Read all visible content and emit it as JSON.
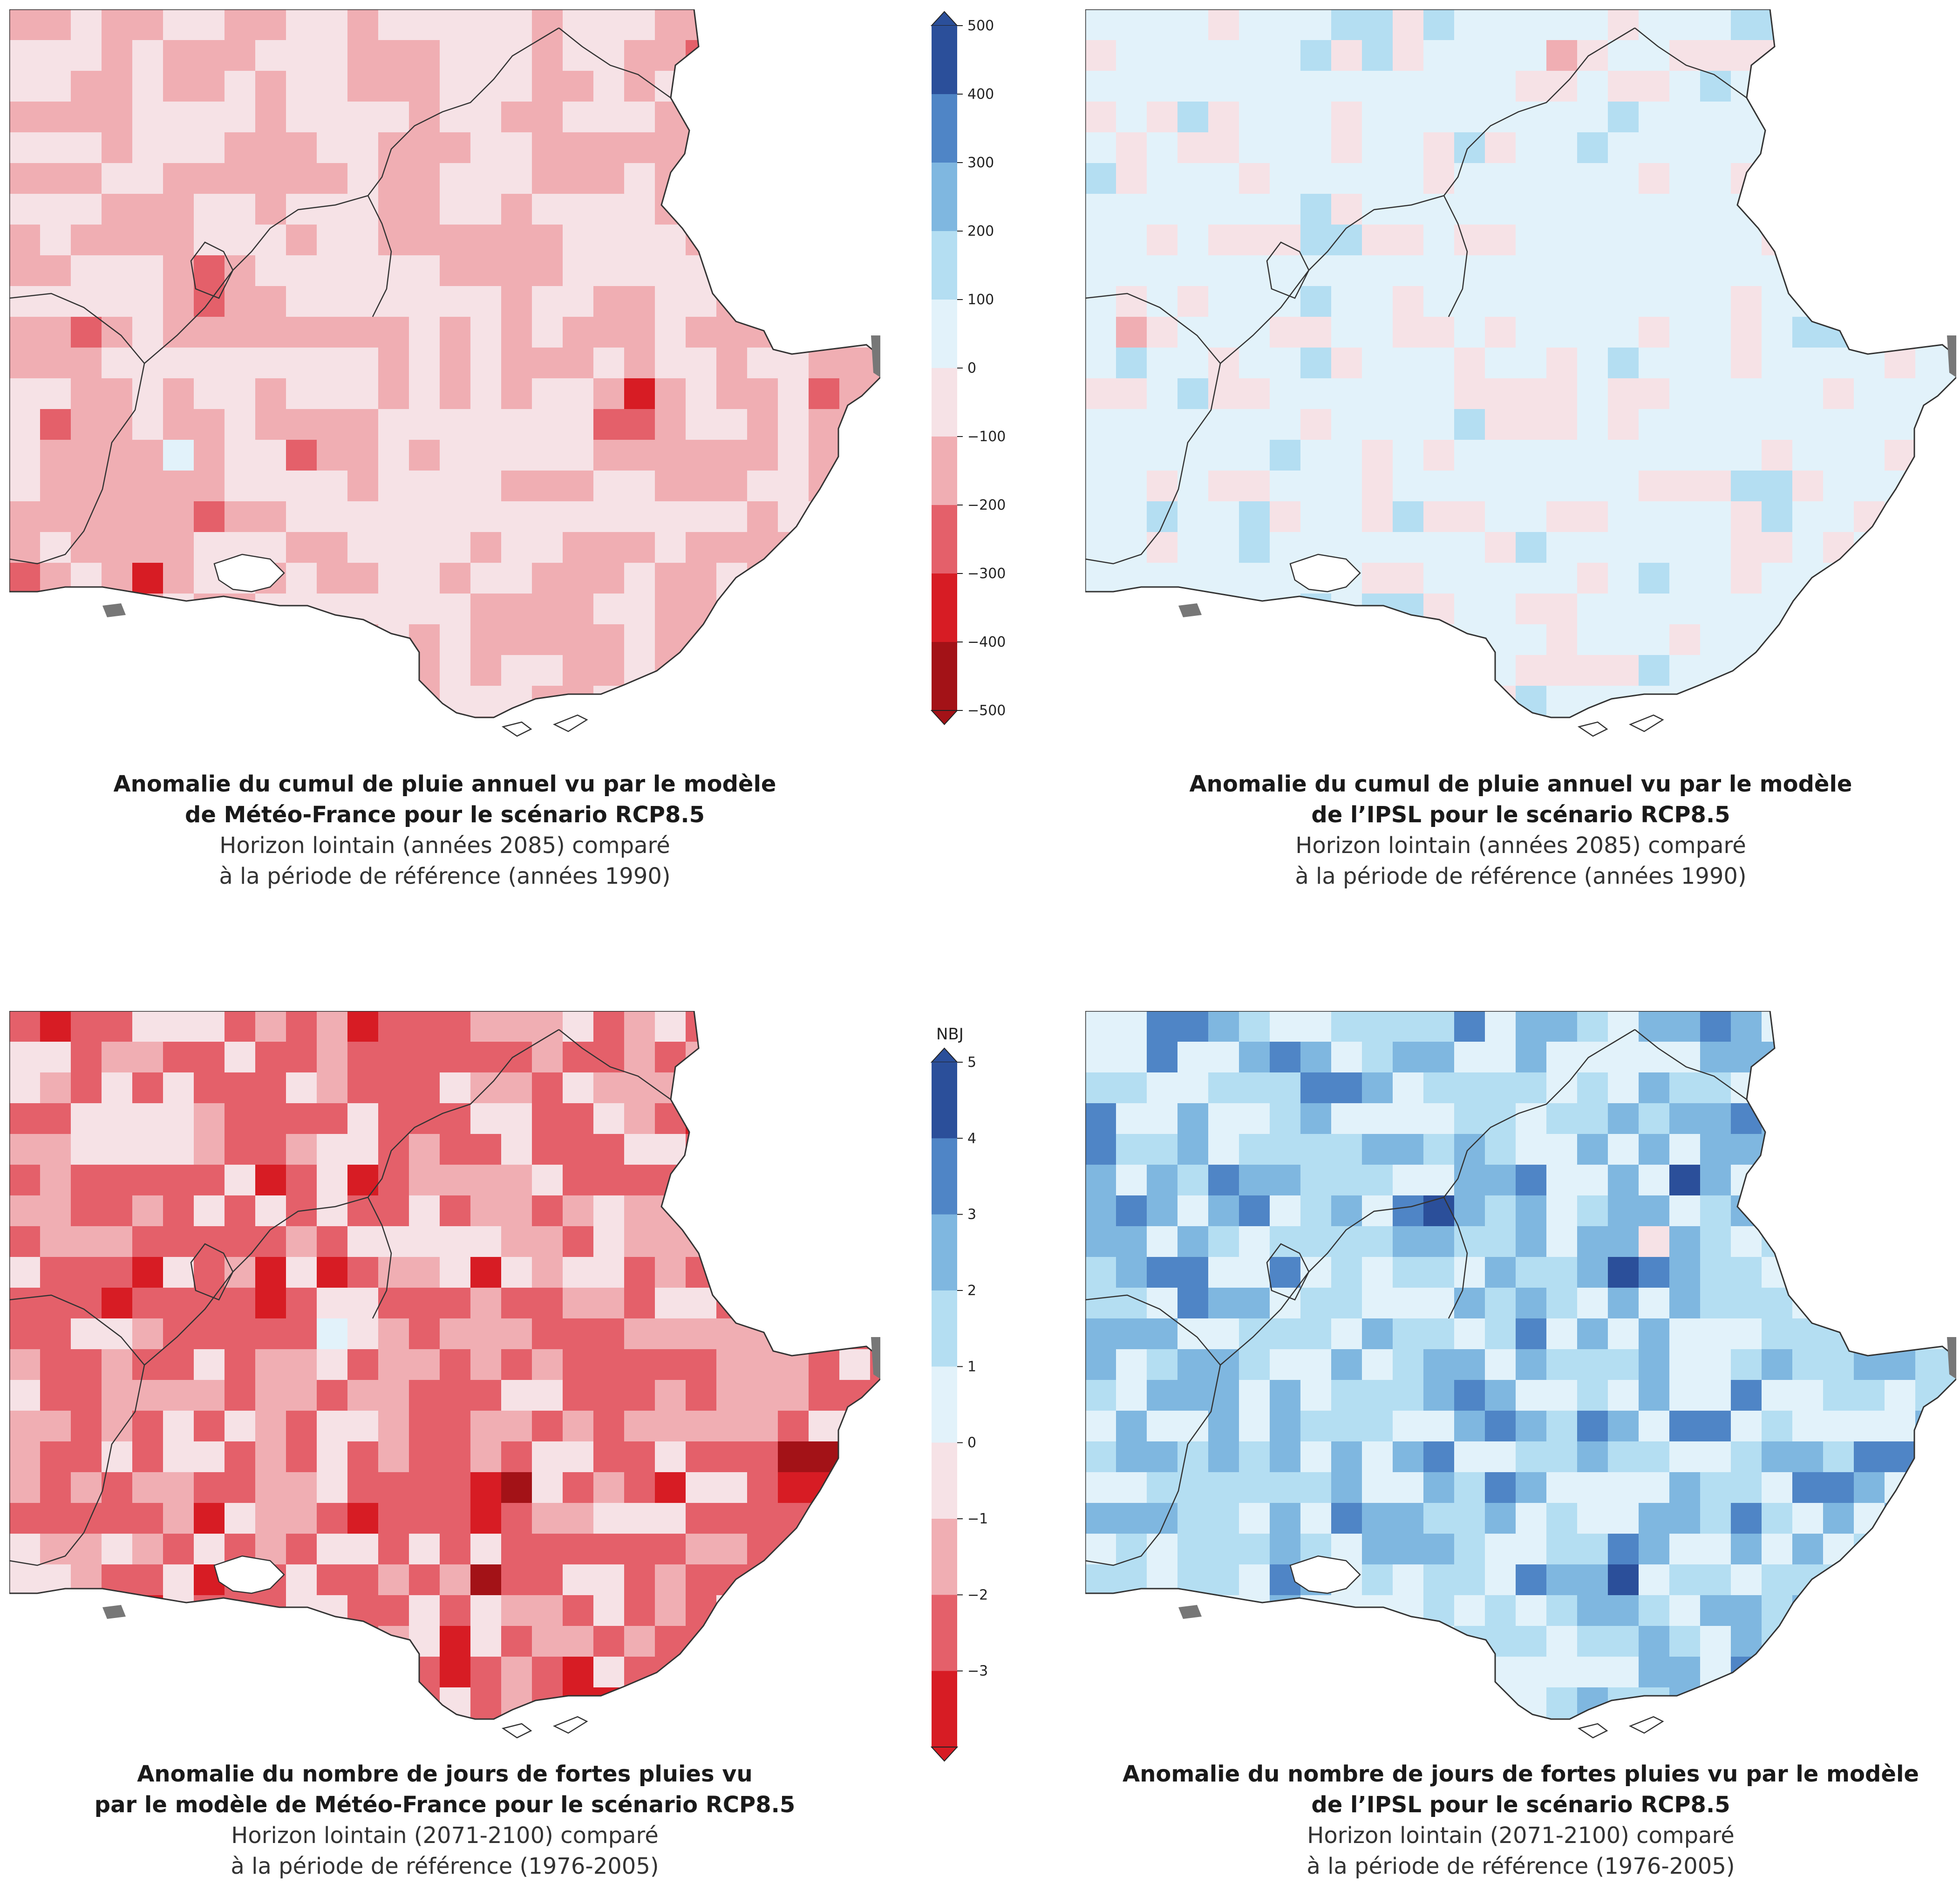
{
  "maps": [
    {
      "id": "rain-meteofrance",
      "caption_title_1": "Anomalie du cumul de pluie annuel vu par le modèle",
      "caption_title_2": "de Météo-France pour le scénario RCP8.5",
      "caption_sub_1": "Horizon lointain (années 2085) comparé",
      "caption_sub_2": "à la période de référence (années 1990)",
      "dominant": "dry"
    },
    {
      "id": "rain-ipsl",
      "caption_title_1": "Anomalie du cumul de pluie annuel vu par le modèle",
      "caption_title_2": "de l’IPSL pour le scénario RCP8.5",
      "caption_sub_1": "Horizon lointain (années 2085) comparé",
      "caption_sub_2": "à la période de référence (années 1990)",
      "dominant": "wet-light"
    },
    {
      "id": "heavy-meteofrance",
      "caption_title_1": "Anomalie du nombre de jours de fortes pluies vu",
      "caption_title_2": "par le modèle de Météo-France pour le scénario RCP8.5",
      "caption_sub_1": "Horizon lointain (2071-2100) comparé",
      "caption_sub_2": "à la période de référence (1976-2005)",
      "dominant": "dry-strong"
    },
    {
      "id": "heavy-ipsl",
      "caption_title_1": "Anomalie du nombre de jours de fortes pluies vu par le modèle",
      "caption_title_2": "de l’IPSL pour le scénario RCP8.5",
      "caption_sub_1": "Horizon lointain (2071-2100) comparé",
      "caption_sub_2": "à la période de référence (1976-2005)",
      "dominant": "wet-strong"
    }
  ],
  "legend_rain": {
    "ticks": [
      "500",
      "400",
      "300",
      "200",
      "100",
      "0",
      "−100",
      "−200",
      "−300",
      "−400",
      "−500"
    ],
    "colors": [
      "#2b4f9a",
      "#4f85c6",
      "#7fb7e0",
      "#b4def2",
      "#e2f2fa",
      "#f6e2e6",
      "#f0aeb3",
      "#e4606a",
      "#d71c24",
      "#a31217"
    ]
  },
  "legend_days": {
    "title": "NBJ",
    "ticks": [
      "5",
      "4",
      "3",
      "2",
      "1",
      "0",
      "−1",
      "−2",
      "−3"
    ],
    "colors": [
      "#2b4f9a",
      "#4f85c6",
      "#7fb7e0",
      "#b4def2",
      "#e2f2fa",
      "#f6e2e6",
      "#f0aeb3",
      "#e4606a",
      "#d71c24"
    ]
  }
}
